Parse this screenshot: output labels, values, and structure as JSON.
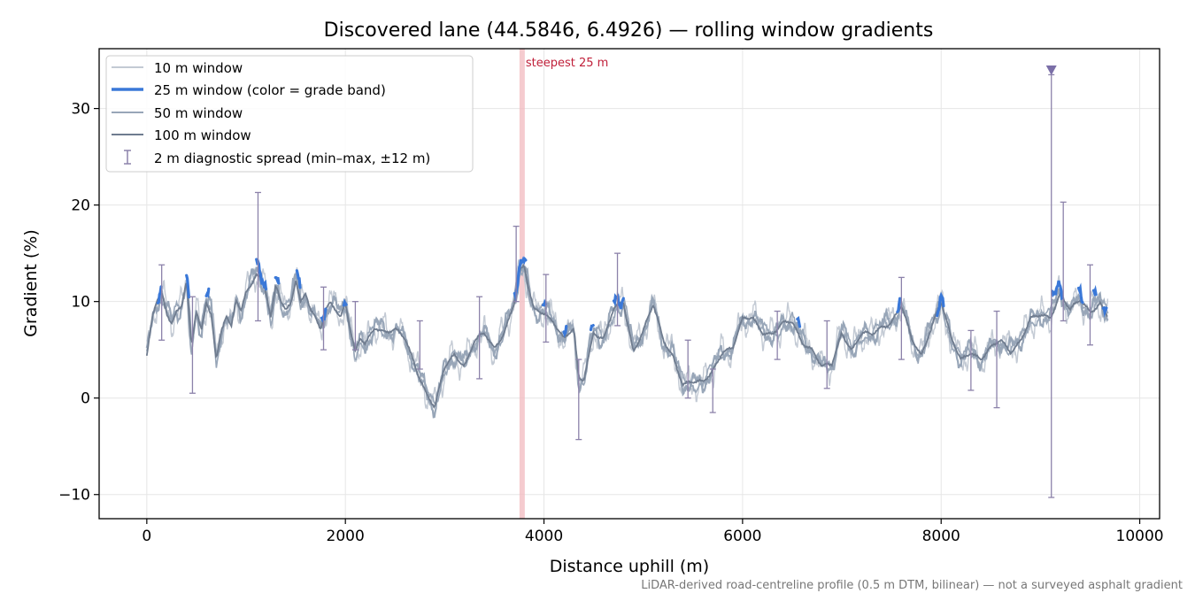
{
  "chart_data": {
    "type": "line",
    "title": "Discovered lane (44.5846, 6.4926) — rolling window gradients",
    "xlabel": "Distance uphill (m)",
    "ylabel": "Gradient (%)",
    "xlim": [
      -480,
      10200
    ],
    "ylim": [
      -12.5,
      36.2
    ],
    "x_ticks": [
      0,
      2000,
      4000,
      6000,
      8000,
      10000
    ],
    "x_tick_labels": [
      "0",
      "2000",
      "4000",
      "6000",
      "8000",
      "10000"
    ],
    "y_ticks": [
      -10,
      0,
      10,
      20,
      30
    ],
    "y_tick_labels": [
      "−10",
      "0",
      "10",
      "20",
      "30"
    ],
    "grid": true,
    "legend_position": "top-left",
    "footnote": "LiDAR-derived road-centreline profile (0.5 m DTM, bilinear) — not a surveyed asphalt gradient",
    "annotations": [
      {
        "text": "steepest 25 m",
        "x": 3780,
        "color": "#c0203a"
      }
    ],
    "colors": {
      "w10": "#c3cad4",
      "w25": "#3a78d8",
      "w50": "#98a6b8",
      "w100": "#6f7c8f",
      "diag": "#8c82aa",
      "steep_band": "#f2b9bf"
    },
    "legend": [
      "10 m window",
      "25 m window (color = grade band)",
      "50 m window",
      "100 m window",
      "2 m diagnostic spread (min–max, ±12 m)"
    ],
    "series": [
      {
        "name": "10 m window",
        "key": "w10"
      },
      {
        "name": "25 m window (color = grade band)",
        "key": "w25"
      },
      {
        "name": "50 m window",
        "key": "w50"
      },
      {
        "name": "100 m window",
        "key": "w100"
      }
    ],
    "profile": {
      "x": [
        0,
        60,
        100,
        150,
        200,
        250,
        300,
        350,
        400,
        450,
        500,
        550,
        600,
        650,
        700,
        750,
        800,
        850,
        900,
        950,
        1000,
        1050,
        1100,
        1150,
        1200,
        1250,
        1300,
        1350,
        1400,
        1450,
        1500,
        1550,
        1600,
        1650,
        1700,
        1750,
        1800,
        1850,
        1900,
        1950,
        2000,
        2050,
        2100,
        2150,
        2200,
        2300,
        2400,
        2500,
        2600,
        2700,
        2800,
        2900,
        2950,
        3000,
        3100,
        3200,
        3300,
        3400,
        3500,
        3600,
        3700,
        3750,
        3800,
        3850,
        3900,
        4000,
        4100,
        4200,
        4300,
        4350,
        4400,
        4500,
        4600,
        4700,
        4800,
        4900,
        5000,
        5100,
        5200,
        5300,
        5400,
        5500,
        5600,
        5700,
        5800,
        5900,
        6000,
        6100,
        6200,
        6300,
        6400,
        6500,
        6600,
        6700,
        6800,
        6900,
        7000,
        7100,
        7200,
        7300,
        7400,
        7500,
        7600,
        7700,
        7800,
        7900,
        8000,
        8100,
        8200,
        8300,
        8400,
        8500,
        8600,
        8700,
        8800,
        8900,
        9000,
        9100,
        9200,
        9300,
        9400,
        9500,
        9600,
        9680
      ],
      "y": [
        4,
        8.5,
        10,
        11,
        9,
        8,
        9,
        9.5,
        12,
        5,
        9,
        7,
        10,
        9,
        4,
        7,
        8.5,
        7,
        10,
        9,
        11,
        12,
        13,
        12.5,
        11,
        8,
        11.5,
        10,
        9,
        10,
        12.5,
        10,
        11,
        9,
        8,
        7,
        9,
        10,
        9.5,
        8.5,
        10,
        7,
        4.5,
        6,
        5.5,
        7.5,
        7,
        7,
        6,
        3.5,
        1,
        -1,
        1,
        3,
        4.5,
        3.5,
        6,
        6.5,
        5,
        7,
        10,
        13,
        13.5,
        11,
        9,
        9,
        8,
        6,
        7,
        2,
        2,
        7,
        6,
        9,
        10,
        5,
        7,
        9.5,
        6,
        4.5,
        1.5,
        1.5,
        1.5,
        3,
        5,
        5,
        8,
        8.5,
        7,
        6.5,
        7.5,
        8,
        6,
        5,
        3,
        3.5,
        7,
        5,
        6.5,
        6.5,
        7.5,
        8,
        9.5,
        6,
        4.5,
        7.5,
        10,
        6,
        4,
        5,
        4,
        5,
        6,
        5,
        6,
        8,
        8.5,
        8.5,
        11,
        9,
        10,
        9,
        10,
        8.5
      ]
    },
    "highlight_25m_x_ranges": [
      [
        110,
        150
      ],
      [
        395,
        425
      ],
      [
        600,
        625
      ],
      [
        1100,
        1200
      ],
      [
        1290,
        1330
      ],
      [
        1510,
        1550
      ],
      [
        1760,
        1800
      ],
      [
        1980,
        2010
      ],
      [
        3700,
        3820
      ],
      [
        3990,
        4020
      ],
      [
        4200,
        4230
      ],
      [
        4470,
        4500
      ],
      [
        4700,
        4800
      ],
      [
        6550,
        6580
      ],
      [
        7560,
        7590
      ],
      [
        7960,
        8030
      ],
      [
        9120,
        9230
      ],
      [
        9380,
        9430
      ],
      [
        9530,
        9560
      ],
      [
        9630,
        9670
      ]
    ],
    "diagnostic_spread": [
      {
        "x": 150,
        "min": 6,
        "max": 13.8
      },
      {
        "x": 460,
        "min": 0.5,
        "max": 10.5
      },
      {
        "x": 1120,
        "min": 8,
        "max": 21.3
      },
      {
        "x": 1780,
        "min": 5,
        "max": 11.5
      },
      {
        "x": 2100,
        "min": 5,
        "max": 10
      },
      {
        "x": 2750,
        "min": 3,
        "max": 8
      },
      {
        "x": 3350,
        "min": 2,
        "max": 10.5
      },
      {
        "x": 3720,
        "min": 10,
        "max": 17.8
      },
      {
        "x": 4020,
        "min": 5.8,
        "max": 12.8
      },
      {
        "x": 4350,
        "min": -4.3,
        "max": 4
      },
      {
        "x": 4740,
        "min": 7.5,
        "max": 15
      },
      {
        "x": 5450,
        "min": 0,
        "max": 6
      },
      {
        "x": 5700,
        "min": -1.5,
        "max": 3
      },
      {
        "x": 6350,
        "min": 4,
        "max": 9
      },
      {
        "x": 6850,
        "min": 1,
        "max": 8
      },
      {
        "x": 7600,
        "min": 4,
        "max": 12.5
      },
      {
        "x": 8300,
        "min": 0.8,
        "max": 7
      },
      {
        "x": 8560,
        "min": -1,
        "max": 9
      },
      {
        "x": 9110,
        "min": -10.3,
        "max": 33.5
      },
      {
        "x": 9230,
        "min": 8,
        "max": 20.3
      },
      {
        "x": 9500,
        "min": 5.5,
        "max": 13.8
      }
    ],
    "marker": {
      "x": 9110,
      "y": 34,
      "symbol": "triangle-down"
    }
  }
}
